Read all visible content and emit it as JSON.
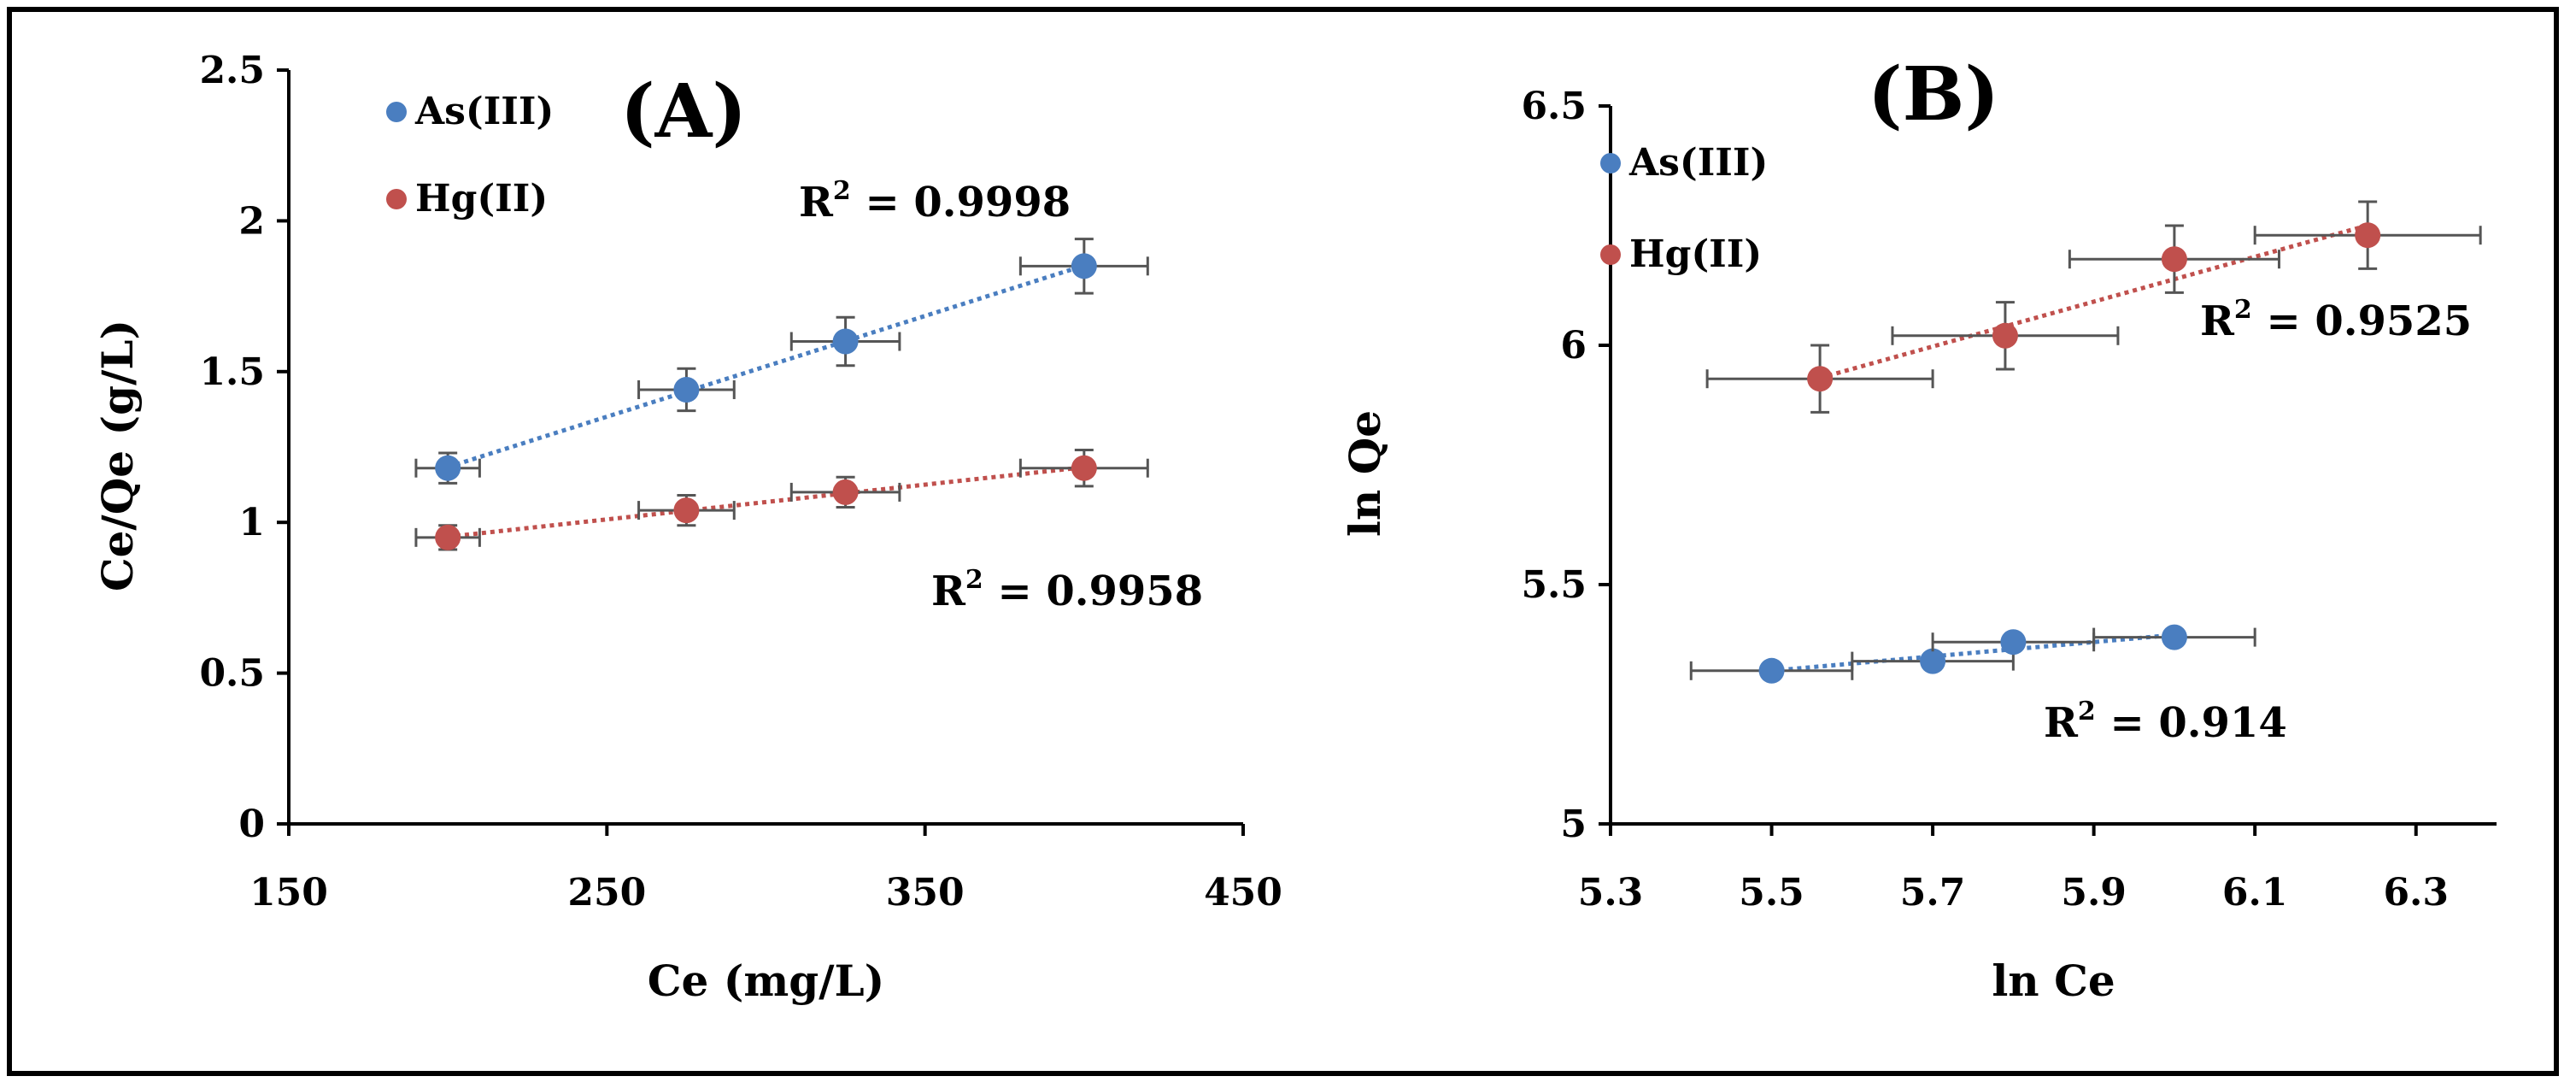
{
  "chart_data": [
    {
      "type": "scatter",
      "panel_label": "(A)",
      "title": "(A)",
      "xlabel": "Ce (mg/L)",
      "ylabel": "Ce/Qe (g/L)",
      "xlim": [
        150,
        450
      ],
      "ylim": [
        0,
        2.5
      ],
      "xticks": [
        150,
        250,
        350,
        450
      ],
      "xtick_labels": [
        "150",
        "250",
        "350",
        "450"
      ],
      "yticks": [
        0,
        0.5,
        1,
        1.5,
        2,
        2.5
      ],
      "ytick_labels": [
        "0",
        "0.5",
        "1",
        "1.5",
        "2",
        "2.5"
      ],
      "legend": [
        "As(III)",
        "Hg(II)"
      ],
      "legend_position": "top-left",
      "series": [
        {
          "name": "As(III)",
          "color": "#4a7ec0",
          "x": [
            200,
            275,
            325,
            400
          ],
          "y": [
            1.18,
            1.44,
            1.6,
            1.85
          ],
          "x_err": [
            10,
            15,
            17,
            20
          ],
          "y_err": [
            0.05,
            0.07,
            0.08,
            0.09
          ],
          "trendline": true,
          "r2_label": "R² = 0.9998",
          "r2_prefix": "R",
          "r2_sup": "2",
          "r2_value": " = 0.9998"
        },
        {
          "name": "Hg(II)",
          "color": "#c0504d",
          "x": [
            200,
            275,
            325,
            400
          ],
          "y": [
            0.95,
            1.04,
            1.1,
            1.18
          ],
          "x_err": [
            10,
            15,
            17,
            20
          ],
          "y_err": [
            0.04,
            0.05,
            0.05,
            0.06
          ],
          "trendline": true,
          "r2_label": "R² =  0.9958",
          "r2_prefix": "R",
          "r2_sup": "2",
          "r2_value": " =  0.9958"
        }
      ]
    },
    {
      "type": "scatter",
      "panel_label": "(B)",
      "title": "(B)",
      "xlabel": "ln Ce",
      "ylabel": "ln Qe",
      "xlim": [
        5.3,
        6.4
      ],
      "ylim": [
        5,
        6.5
      ],
      "xticks": [
        5.3,
        5.5,
        5.7,
        5.9,
        6.1,
        6.3
      ],
      "xtick_labels": [
        "5.3",
        "5.5",
        "5.7",
        "5.9",
        "6.1",
        "6.3"
      ],
      "yticks": [
        5,
        5.5,
        6,
        6.5
      ],
      "ytick_labels": [
        "5",
        "5.5",
        "6",
        "6.5"
      ],
      "legend": [
        "As(III)",
        "Hg(II)"
      ],
      "legend_position": "top-left",
      "series": [
        {
          "name": "As(III)",
          "color": "#4a7ec0",
          "x": [
            5.5,
            5.7,
            5.8,
            6.0
          ],
          "y": [
            5.32,
            5.34,
            5.38,
            5.39
          ],
          "x_err": [
            0.1,
            0.1,
            0.1,
            0.1
          ],
          "y_err": [
            0.01,
            0.01,
            0.01,
            0.01
          ],
          "trendline": true,
          "r2_label": "R² = 0.914",
          "r2_prefix": "R",
          "r2_sup": "2",
          "r2_value": " = 0.914"
        },
        {
          "name": "Hg(II)",
          "color": "#c0504d",
          "x": [
            5.56,
            5.79,
            6.0,
            6.24
          ],
          "y": [
            5.93,
            6.02,
            6.18,
            6.23
          ],
          "x_err": [
            0.14,
            0.14,
            0.13,
            0.14
          ],
          "y_err": [
            0.07,
            0.07,
            0.07,
            0.07
          ],
          "trendline": true,
          "r2_label": "R² = 0.9525",
          "r2_prefix": "R",
          "r2_sup": "2",
          "r2_value": " = 0.9525"
        }
      ]
    }
  ]
}
